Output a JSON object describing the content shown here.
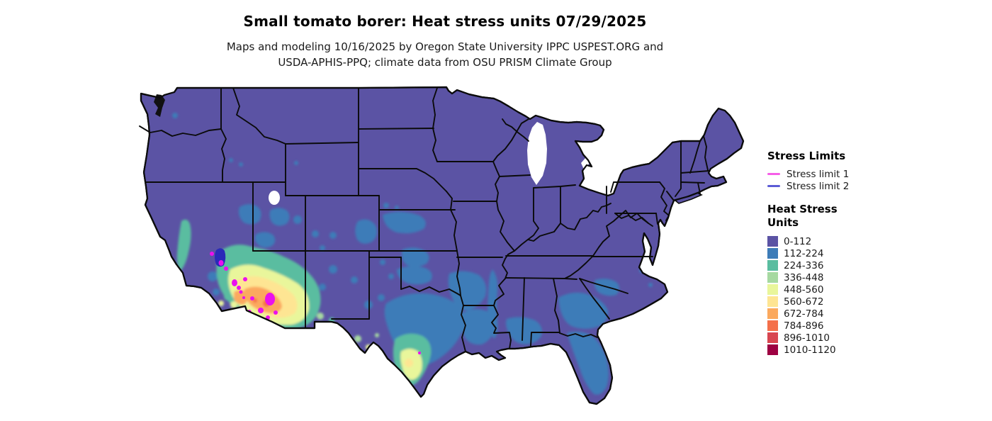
{
  "header": {
    "title": "Small tomato borer: Heat stress units 07/29/2025",
    "subtitle_line1": "Maps and modeling 10/16/2025 by Oregon State University IPPC USPEST.ORG and",
    "subtitle_line2": "USDA-APHIS-PPQ; climate data from OSU PRISM Climate Group"
  },
  "legend": {
    "stress_limits": {
      "title": "Stress Limits",
      "items": [
        {
          "label": "Stress limit 1",
          "color": "#f65ee8"
        },
        {
          "label": "Stress limit 2",
          "color": "#5c5cd6"
        }
      ]
    },
    "heat_units": {
      "title_line1": "Heat Stress",
      "title_line2": "Units",
      "classes": [
        {
          "range": "0-112",
          "color": "#5b53a4"
        },
        {
          "range": "112-224",
          "color": "#3d7cb8"
        },
        {
          "range": "224-336",
          "color": "#5abda0"
        },
        {
          "range": "336-448",
          "color": "#a6d9a1"
        },
        {
          "range": "448-560",
          "color": "#e9f69b"
        },
        {
          "range": "560-672",
          "color": "#fee593"
        },
        {
          "range": "672-784",
          "color": "#fba95e"
        },
        {
          "range": "784-896",
          "color": "#f4704a"
        },
        {
          "range": "896-1010",
          "color": "#d84650"
        },
        {
          "range": "1010-1120",
          "color": "#9e0142"
        }
      ]
    }
  },
  "map": {
    "stress_limit_1_fill": "#ea10ee",
    "stress_limit_2_fill": "#2a2ab8",
    "border_color": "#0b0b0b",
    "background": "#ffffff"
  }
}
